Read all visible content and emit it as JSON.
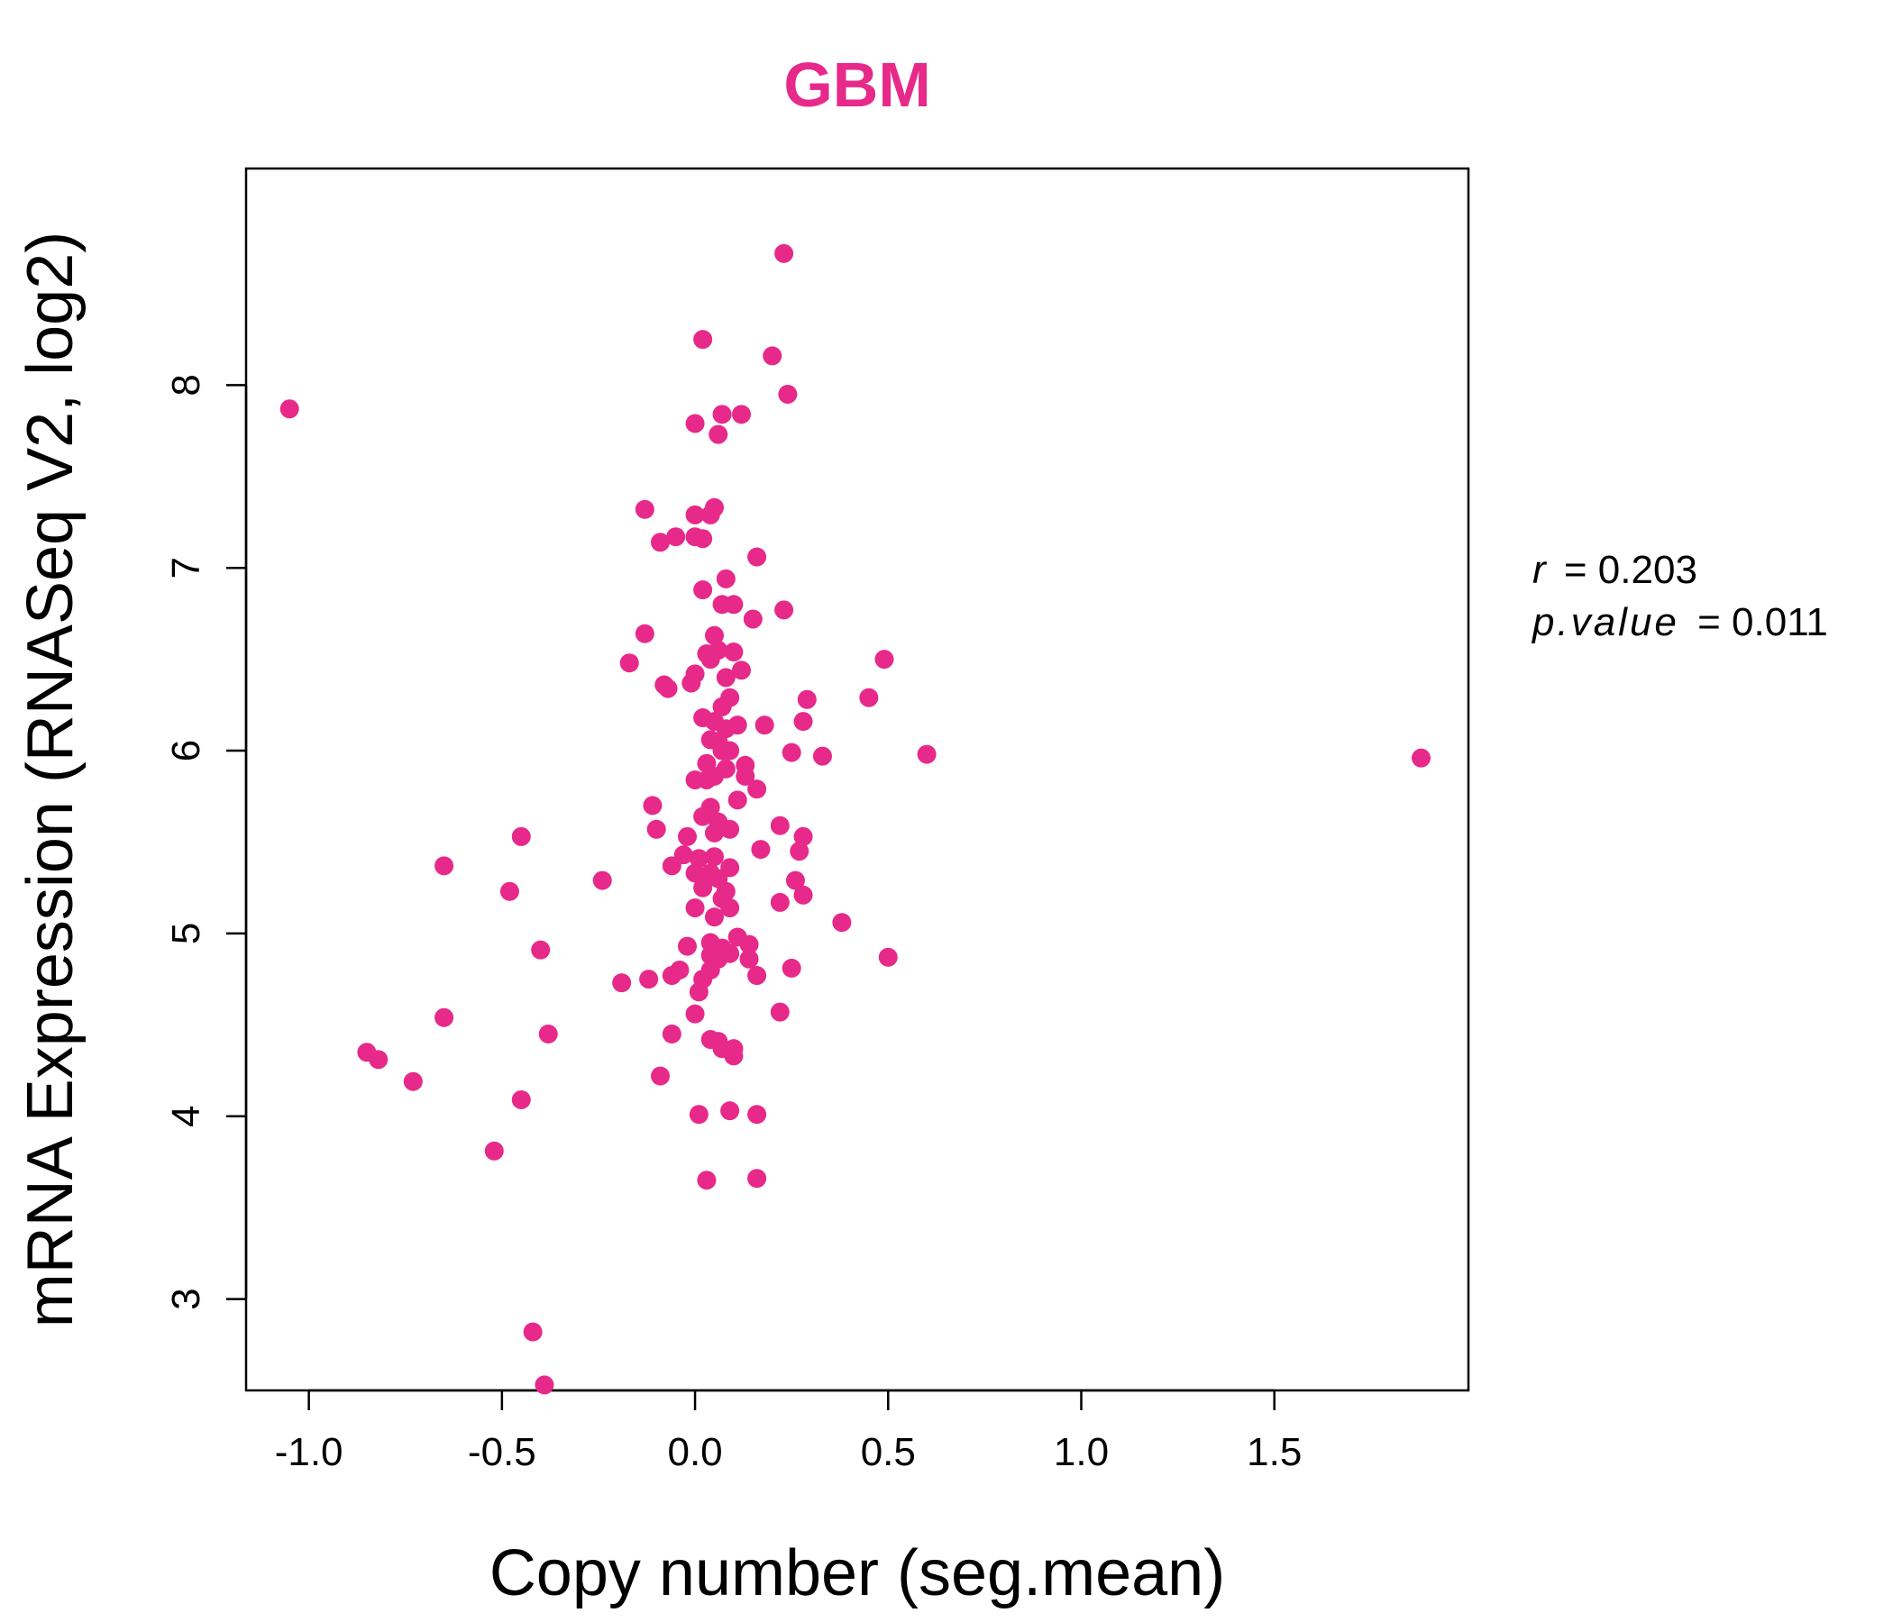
{
  "chart_data": {
    "type": "scatter",
    "title": "GBM",
    "xlabel": "Copy number (seg.mean)",
    "ylabel": "mRNA Expression (RNASeq V2, log2)",
    "xlim": [
      -1.1625,
      2.0025
    ],
    "ylim": [
      2.5,
      9.185
    ],
    "xticks": [
      -1.0,
      -0.5,
      0.0,
      0.5,
      1.0,
      1.5
    ],
    "xtick_labels": [
      "-1.0",
      "-0.5",
      "0.0",
      "0.5",
      "1.0",
      "1.5"
    ],
    "yticks": [
      3,
      4,
      5,
      6,
      7,
      8
    ],
    "ytick_labels": [
      "3",
      "4",
      "5",
      "6",
      "7",
      "8"
    ],
    "grid": false,
    "point_color": "#E7298A",
    "annotations": {
      "r_label": "r",
      "r_value": "= 0.203",
      "p_label": "p.value",
      "p_value": "= 0.011"
    },
    "points": [
      [
        0.23,
        8.72
      ],
      [
        0.02,
        8.25
      ],
      [
        0.2,
        8.16
      ],
      [
        0.24,
        7.95
      ],
      [
        -1.05,
        7.87
      ],
      [
        0.07,
        7.84
      ],
      [
        0.12,
        7.84
      ],
      [
        0.0,
        7.79
      ],
      [
        0.06,
        7.73
      ],
      [
        -0.13,
        7.32
      ],
      [
        0.05,
        7.33
      ],
      [
        0.04,
        7.29
      ],
      [
        0.0,
        7.29
      ],
      [
        0.0,
        7.17
      ],
      [
        -0.05,
        7.17
      ],
      [
        0.02,
        7.16
      ],
      [
        -0.09,
        7.14
      ],
      [
        0.16,
        7.06
      ],
      [
        0.08,
        6.94
      ],
      [
        0.02,
        6.88
      ],
      [
        0.07,
        6.8
      ],
      [
        0.1,
        6.8
      ],
      [
        0.23,
        6.77
      ],
      [
        0.15,
        6.72
      ],
      [
        -0.13,
        6.64
      ],
      [
        0.05,
        6.63
      ],
      [
        0.06,
        6.55
      ],
      [
        0.1,
        6.54
      ],
      [
        0.03,
        6.53
      ],
      [
        0.49,
        6.5
      ],
      [
        0.04,
        6.5
      ],
      [
        -0.17,
        6.48
      ],
      [
        0.12,
        6.44
      ],
      [
        0.08,
        6.4
      ],
      [
        0.0,
        6.42
      ],
      [
        -0.01,
        6.37
      ],
      [
        -0.08,
        6.36
      ],
      [
        -0.07,
        6.34
      ],
      [
        0.45,
        6.29
      ],
      [
        0.29,
        6.28
      ],
      [
        0.09,
        6.29
      ],
      [
        0.07,
        6.24
      ],
      [
        0.02,
        6.18
      ],
      [
        0.28,
        6.16
      ],
      [
        0.05,
        6.16
      ],
      [
        0.11,
        6.14
      ],
      [
        0.18,
        6.14
      ],
      [
        0.08,
        6.12
      ],
      [
        0.04,
        6.06
      ],
      [
        0.06,
        6.05
      ],
      [
        0.09,
        6.0
      ],
      [
        0.07,
        6.0
      ],
      [
        0.25,
        5.99
      ],
      [
        0.33,
        5.97
      ],
      [
        0.6,
        5.98
      ],
      [
        1.88,
        5.96
      ],
      [
        0.03,
        5.93
      ],
      [
        0.13,
        5.92
      ],
      [
        0.08,
        5.9
      ],
      [
        0.13,
        5.86
      ],
      [
        0.03,
        5.84
      ],
      [
        0.0,
        5.84
      ],
      [
        0.05,
        5.86
      ],
      [
        0.16,
        5.79
      ],
      [
        0.11,
        5.73
      ],
      [
        -0.11,
        5.7
      ],
      [
        0.04,
        5.69
      ],
      [
        0.02,
        5.64
      ],
      [
        0.06,
        5.61
      ],
      [
        0.22,
        5.59
      ],
      [
        -0.1,
        5.57
      ],
      [
        0.09,
        5.57
      ],
      [
        0.05,
        5.55
      ],
      [
        -0.02,
        5.53
      ],
      [
        0.28,
        5.53
      ],
      [
        -0.45,
        5.53
      ],
      [
        0.17,
        5.46
      ],
      [
        0.27,
        5.45
      ],
      [
        -0.03,
        5.43
      ],
      [
        0.05,
        5.42
      ],
      [
        0.01,
        5.41
      ],
      [
        -0.06,
        5.37
      ],
      [
        -0.65,
        5.37
      ],
      [
        0.09,
        5.36
      ],
      [
        0.0,
        5.33
      ],
      [
        0.04,
        5.33
      ],
      [
        0.06,
        5.3
      ],
      [
        0.26,
        5.29
      ],
      [
        -0.24,
        5.29
      ],
      [
        0.02,
        5.25
      ],
      [
        0.08,
        5.23
      ],
      [
        -0.48,
        5.23
      ],
      [
        0.07,
        5.19
      ],
      [
        0.28,
        5.21
      ],
      [
        0.22,
        5.17
      ],
      [
        0.09,
        5.14
      ],
      [
        0.0,
        5.14
      ],
      [
        0.05,
        5.09
      ],
      [
        0.38,
        5.06
      ],
      [
        0.11,
        4.98
      ],
      [
        0.04,
        4.95
      ],
      [
        0.14,
        4.94
      ],
      [
        0.07,
        4.92
      ],
      [
        -0.02,
        4.93
      ],
      [
        -0.4,
        4.91
      ],
      [
        0.09,
        4.89
      ],
      [
        0.04,
        4.88
      ],
      [
        0.06,
        4.86
      ],
      [
        0.14,
        4.86
      ],
      [
        0.5,
        4.87
      ],
      [
        -0.04,
        4.8
      ],
      [
        0.25,
        4.81
      ],
      [
        0.04,
        4.8
      ],
      [
        -0.06,
        4.77
      ],
      [
        0.16,
        4.77
      ],
      [
        0.02,
        4.75
      ],
      [
        -0.12,
        4.75
      ],
      [
        -0.19,
        4.73
      ],
      [
        0.01,
        4.68
      ],
      [
        0.22,
        4.57
      ],
      [
        0.0,
        4.56
      ],
      [
        -0.65,
        4.54
      ],
      [
        -0.06,
        4.45
      ],
      [
        -0.38,
        4.45
      ],
      [
        0.04,
        4.42
      ],
      [
        0.06,
        4.41
      ],
      [
        0.07,
        4.37
      ],
      [
        0.1,
        4.37
      ],
      [
        0.1,
        4.33
      ],
      [
        -0.85,
        4.35
      ],
      [
        -0.82,
        4.31
      ],
      [
        -0.09,
        4.22
      ],
      [
        -0.73,
        4.19
      ],
      [
        -0.45,
        4.09
      ],
      [
        0.09,
        4.03
      ],
      [
        0.01,
        4.01
      ],
      [
        0.16,
        4.01
      ],
      [
        -0.52,
        3.81
      ],
      [
        0.16,
        3.66
      ],
      [
        0.03,
        3.65
      ],
      [
        -0.42,
        2.82
      ],
      [
        -0.39,
        2.53
      ]
    ]
  }
}
